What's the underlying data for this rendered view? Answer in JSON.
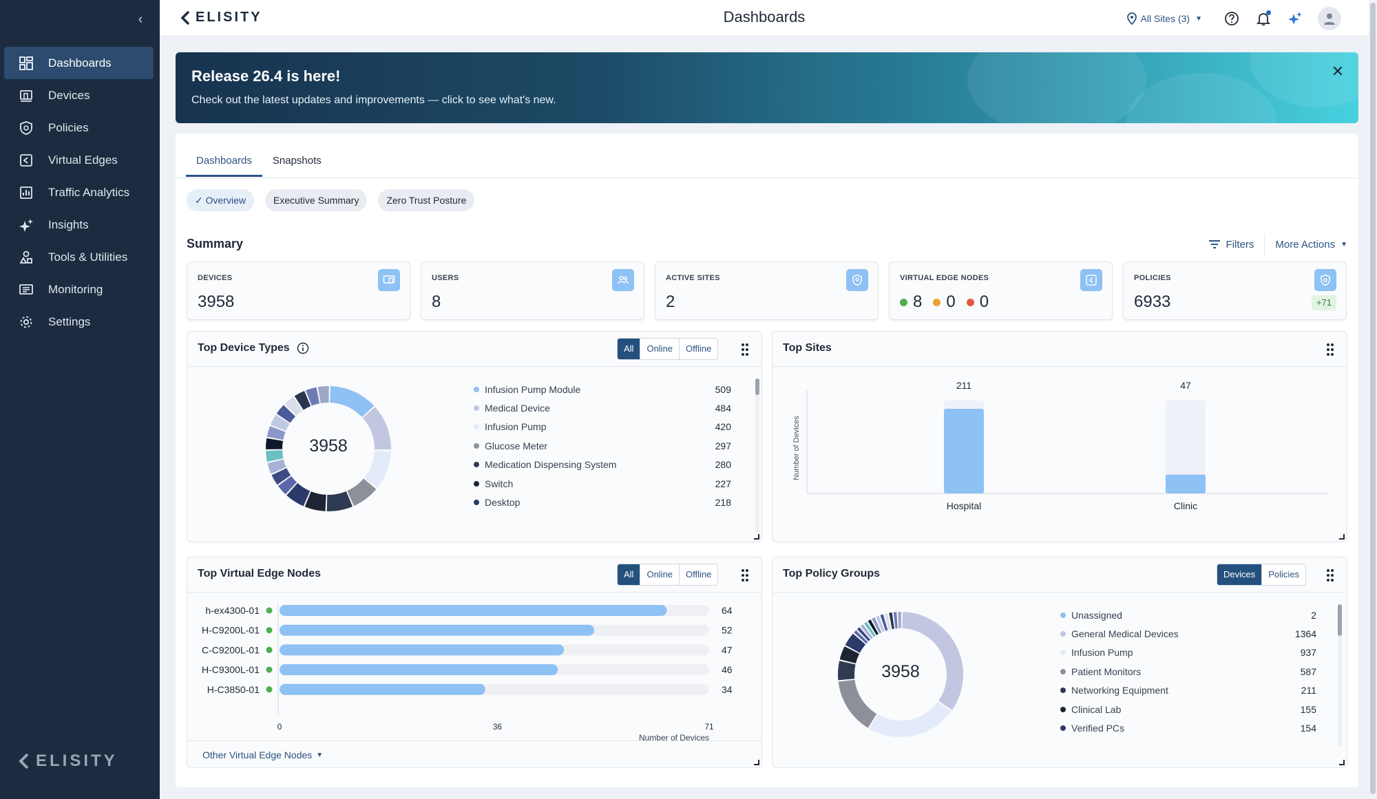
{
  "app": {
    "brand": "ELISITY",
    "page_title": "Dashboards"
  },
  "topbar": {
    "sites_label": "All Sites (3)"
  },
  "sidebar": {
    "items": [
      {
        "label": "Dashboards",
        "icon": "dashboard-icon"
      },
      {
        "label": "Devices",
        "icon": "devices-icon"
      },
      {
        "label": "Policies",
        "icon": "shield-icon"
      },
      {
        "label": "Virtual Edges",
        "icon": "virtual-edge-icon"
      },
      {
        "label": "Traffic Analytics",
        "icon": "chart-icon"
      },
      {
        "label": "Insights",
        "icon": "sparkle-icon"
      },
      {
        "label": "Tools & Utilities",
        "icon": "tools-icon"
      },
      {
        "label": "Monitoring",
        "icon": "monitor-icon"
      },
      {
        "label": "Settings",
        "icon": "gear-icon"
      }
    ],
    "logo": "ELISITY"
  },
  "banner": {
    "title": "Release 26.4 is here!",
    "subtitle": "Check out the latest updates and improvements — click to see what's new."
  },
  "tabs": [
    "Dashboards",
    "Snapshots"
  ],
  "chips": [
    "Overview",
    "Executive Summary",
    "Zero Trust Posture"
  ],
  "summary": {
    "title": "Summary",
    "filters_label": "Filters",
    "more_actions_label": "More Actions",
    "cards": {
      "devices": {
        "label": "DEVICES",
        "value": "3958"
      },
      "users": {
        "label": "USERS",
        "value": "8"
      },
      "active_sites": {
        "label": "ACTIVE SITES",
        "value": "2"
      },
      "virtual_edge_nodes": {
        "label": "VIRTUAL EDGE NODES",
        "green": "8",
        "orange": "0",
        "red": "0"
      },
      "policies": {
        "label": "POLICIES",
        "value": "6933",
        "badge": "+71"
      }
    }
  },
  "panels": {
    "top_device_types": {
      "title": "Top Device Types",
      "filters": [
        "All",
        "Online",
        "Offline"
      ],
      "total": "3958",
      "items": [
        {
          "name": "Infusion Pump Module",
          "count": "509",
          "color": "#8ec1f4"
        },
        {
          "name": "Medical Device",
          "count": "484",
          "color": "#c3c6e0"
        },
        {
          "name": "Infusion Pump",
          "count": "420",
          "color": "#e3ebfa"
        },
        {
          "name": "Glucose Meter",
          "count": "297",
          "color": "#8e9099"
        },
        {
          "name": "Medication Dispensing System",
          "count": "280",
          "color": "#2f3b52"
        },
        {
          "name": "Switch",
          "count": "227",
          "color": "#1d2433"
        },
        {
          "name": "Desktop",
          "count": "218",
          "color": "#2b3a6b"
        }
      ]
    },
    "top_sites": {
      "title": "Top Sites",
      "ylabel": "Number of Devices",
      "categories": [
        "Hospital",
        "Clinic"
      ],
      "values": [
        211,
        47
      ],
      "labels": [
        "211",
        "47"
      ]
    },
    "top_virtual_edge_nodes": {
      "title": "Top Virtual Edge Nodes",
      "filters": [
        "All",
        "Online",
        "Offline"
      ],
      "xlabel": "Number of Devices",
      "ticks": [
        "0",
        "36",
        "71"
      ],
      "max": 71,
      "nodes": [
        {
          "name": "h-ex4300-01",
          "value": 64,
          "label": "64"
        },
        {
          "name": "H-C9200L-01",
          "value": 52,
          "label": "52"
        },
        {
          "name": "C-C9200L-01",
          "value": 47,
          "label": "47"
        },
        {
          "name": "H-C9300L-01",
          "value": 46,
          "label": "46"
        },
        {
          "name": "H-C3850-01",
          "value": 34,
          "label": "34"
        }
      ],
      "other_link": "Other Virtual Edge Nodes"
    },
    "top_policy_groups": {
      "title": "Top Policy Groups",
      "filters": [
        "Devices",
        "Policies"
      ],
      "total": "3958",
      "items": [
        {
          "name": "Unassigned",
          "count": "2",
          "color": "#8ec1f4"
        },
        {
          "name": "General Medical Devices",
          "count": "1364",
          "color": "#c3c6e0"
        },
        {
          "name": "Infusion Pump",
          "count": "937",
          "color": "#e3ebfa"
        },
        {
          "name": "Patient Monitors",
          "count": "587",
          "color": "#8e9099"
        },
        {
          "name": "Networking Equipment",
          "count": "211",
          "color": "#2f3b52"
        },
        {
          "name": "Clinical Lab",
          "count": "155",
          "color": "#1d2433"
        },
        {
          "name": "Verified PCs",
          "count": "154",
          "color": "#2b3a6b"
        }
      ]
    }
  },
  "chart_data": [
    {
      "type": "pie",
      "title": "Top Device Types",
      "categories": [
        "Infusion Pump Module",
        "Medical Device",
        "Infusion Pump",
        "Glucose Meter",
        "Medication Dispensing System",
        "Switch",
        "Desktop"
      ],
      "values": [
        509,
        484,
        420,
        297,
        280,
        227,
        218
      ]
    },
    {
      "type": "bar",
      "title": "Top Sites",
      "categories": [
        "Hospital",
        "Clinic"
      ],
      "values": [
        211,
        47
      ],
      "ylabel": "Number of Devices"
    },
    {
      "type": "bar",
      "title": "Top Virtual Edge Nodes",
      "categories": [
        "h-ex4300-01",
        "H-C9200L-01",
        "C-C9200L-01",
        "H-C9300L-01",
        "H-C3850-01"
      ],
      "values": [
        64,
        52,
        47,
        46,
        34
      ],
      "xlabel": "Number of Devices",
      "xlim": [
        0,
        71
      ]
    },
    {
      "type": "pie",
      "title": "Top Policy Groups",
      "categories": [
        "Unassigned",
        "General Medical Devices",
        "Infusion Pump",
        "Patient Monitors",
        "Networking Equipment",
        "Clinical Lab",
        "Verified PCs"
      ],
      "values": [
        2,
        1364,
        937,
        587,
        211,
        155,
        154
      ]
    }
  ]
}
